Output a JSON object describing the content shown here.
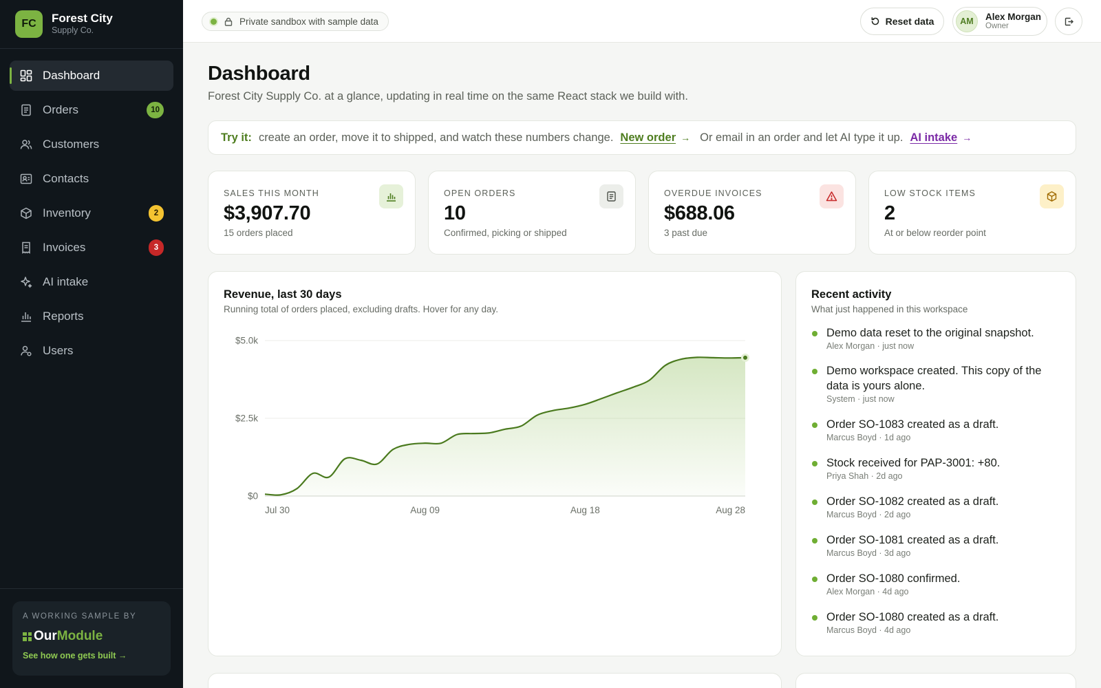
{
  "brand": {
    "initials": "FC",
    "name": "Forest City",
    "subtitle": "Supply Co."
  },
  "nav": [
    {
      "label": "Dashboard",
      "icon": "dashboard-icon",
      "active": true
    },
    {
      "label": "Orders",
      "icon": "orders-icon",
      "badge": "10",
      "badge_color": "#7cb342"
    },
    {
      "label": "Customers",
      "icon": "customers-icon"
    },
    {
      "label": "Contacts",
      "icon": "contacts-icon"
    },
    {
      "label": "Inventory",
      "icon": "inventory-icon",
      "badge": "2",
      "badge_color": "#f4c331"
    },
    {
      "label": "Invoices",
      "icon": "invoices-icon",
      "badge": "3",
      "badge_color": "#c62828"
    },
    {
      "label": "AI intake",
      "icon": "sparkle-icon"
    },
    {
      "label": "Reports",
      "icon": "reports-icon"
    },
    {
      "label": "Users",
      "icon": "users-icon"
    }
  ],
  "sidebar_footer": {
    "tag": "A WORKING SAMPLE BY",
    "logo_part1": "Our",
    "logo_part2": "Module",
    "link": "See how one gets built →"
  },
  "topbar": {
    "sandbox": "Private sandbox with sample data",
    "reset_label": "Reset data",
    "user_initials": "AM",
    "user_name": "Alex Morgan",
    "user_role": "Owner"
  },
  "page": {
    "title": "Dashboard",
    "subtitle": "Forest City Supply Co. at a glance, updating in real time on the same React stack we build with."
  },
  "tryit": {
    "lead": "Try it:",
    "text1": "create an order, move it to shipped, and watch these numbers change.",
    "link1": "New order",
    "text2": "Or email in an order and let AI type it up.",
    "link2": "AI intake"
  },
  "stats": [
    {
      "label": "SALES THIS MONTH",
      "value": "$3,907.70",
      "note": "15 orders placed",
      "icon": "bar-chart-icon",
      "tone": "green"
    },
    {
      "label": "OPEN ORDERS",
      "value": "10",
      "note": "Confirmed, picking or shipped",
      "icon": "clipboard-icon",
      "tone": "grey"
    },
    {
      "label": "OVERDUE INVOICES",
      "value": "$688.06",
      "note": "3 past due",
      "icon": "warning-icon",
      "tone": "red"
    },
    {
      "label": "LOW STOCK ITEMS",
      "value": "2",
      "note": "At or below reorder point",
      "icon": "box-icon",
      "tone": "amber"
    }
  ],
  "revenue": {
    "title": "Revenue, last 30 days",
    "subtitle": "Running total of orders placed, excluding drafts. Hover for any day."
  },
  "chart_data": {
    "type": "area",
    "title": "Revenue, last 30 days",
    "x_tick_labels": [
      "Jul 30",
      "Aug 09",
      "Aug 18",
      "Aug 28"
    ],
    "y_tick_labels": [
      "$5.0k",
      "$2.5k",
      "$0"
    ],
    "ylim": [
      0,
      5000
    ],
    "grid": true,
    "line_color": "#4a7a1e",
    "fill_color": "#7cb342",
    "series": [
      {
        "values": [
          60,
          40,
          240,
          730,
          610,
          1200,
          1150,
          1030,
          1500,
          1660,
          1700,
          1700,
          1980,
          2010,
          2030,
          2150,
          2250,
          2600,
          2750,
          2830,
          2950,
          3130,
          3320,
          3500,
          3720,
          4200,
          4400,
          4460,
          4450,
          4440,
          4450
        ]
      }
    ]
  },
  "activity": {
    "title": "Recent activity",
    "subtitle": "What just happened in this workspace",
    "items": [
      {
        "text": "Demo data reset to the original snapshot.",
        "meta": "Alex Morgan · just now"
      },
      {
        "text": "Demo workspace created. This copy of the data is yours alone.",
        "meta": "System · just now"
      },
      {
        "text": "Order SO-1083 created as a draft.",
        "meta": "Marcus Boyd · 1d ago"
      },
      {
        "text": "Stock received for PAP-3001: +80.",
        "meta": "Priya Shah · 2d ago"
      },
      {
        "text": "Order SO-1082 created as a draft.",
        "meta": "Marcus Boyd · 2d ago"
      },
      {
        "text": "Order SO-1081 created as a draft.",
        "meta": "Marcus Boyd · 3d ago"
      },
      {
        "text": "Order SO-1080 confirmed.",
        "meta": "Alex Morgan · 4d ago"
      },
      {
        "text": "Order SO-1080 created as a draft.",
        "meta": "Marcus Boyd · 4d ago"
      }
    ]
  }
}
